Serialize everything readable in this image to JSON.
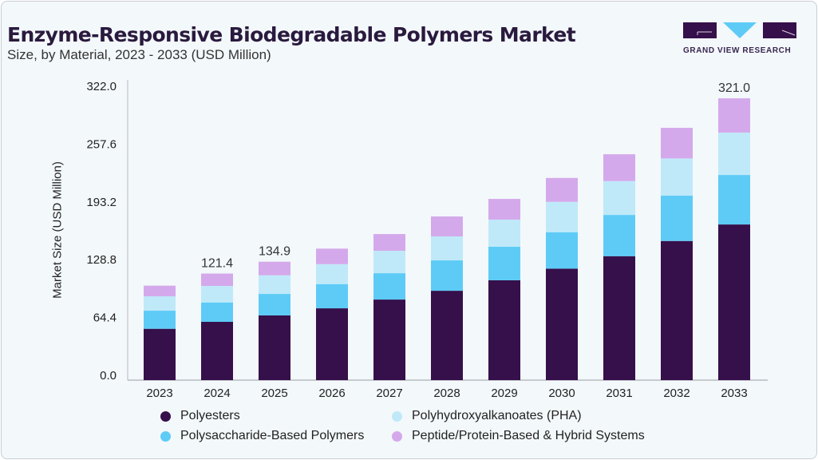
{
  "header": {
    "title": "Enzyme-Responsive Biodegradable Polymers Market",
    "subtitle": "Size, by Material, 2023 - 2033 (USD Million)",
    "logo_text": "GRAND VIEW RESEARCH"
  },
  "chart_data": {
    "type": "stacked-bar",
    "ylabel": "Market Size (USD Million)",
    "ylim": [
      0,
      322
    ],
    "yticks": [
      "0.0",
      "64.4",
      "128.8",
      "193.2",
      "257.6",
      "322.0"
    ],
    "categories": [
      "2023",
      "2024",
      "2025",
      "2026",
      "2027",
      "2028",
      "2029",
      "2030",
      "2031",
      "2032",
      "2033"
    ],
    "series": [
      {
        "name": "Polyesters",
        "color": "#36104a",
        "values": [
          58.5,
          66.4,
          73.7,
          81.8,
          91.8,
          101.8,
          113.7,
          127.0,
          141.2,
          158.5,
          177.3
        ]
      },
      {
        "name": "Polysaccharide-Based Polymers",
        "color": "#5ecbf7",
        "values": [
          20.6,
          22.1,
          24.5,
          27.6,
          30.0,
          34.6,
          38.2,
          41.5,
          47.0,
          51.6,
          56.4
        ]
      },
      {
        "name": "Polyhydroxyalkanoates (PHA)",
        "color": "#bfe9f9",
        "values": [
          16.4,
          18.8,
          21.2,
          22.7,
          25.5,
          27.3,
          30.9,
          34.6,
          38.5,
          42.4,
          48.2
        ]
      },
      {
        "name": "Peptide/Protein-Based & Hybrid Systems",
        "color": "#d4a9eb",
        "values": [
          12.1,
          14.1,
          15.5,
          17.7,
          19.1,
          22.7,
          23.6,
          27.2,
          30.6,
          34.9,
          39.1
        ]
      }
    ],
    "data_labels": {
      "2024": "121.4",
      "2025": "134.9",
      "2033": "321.0"
    },
    "grid": false,
    "legend_position": "bottom"
  }
}
